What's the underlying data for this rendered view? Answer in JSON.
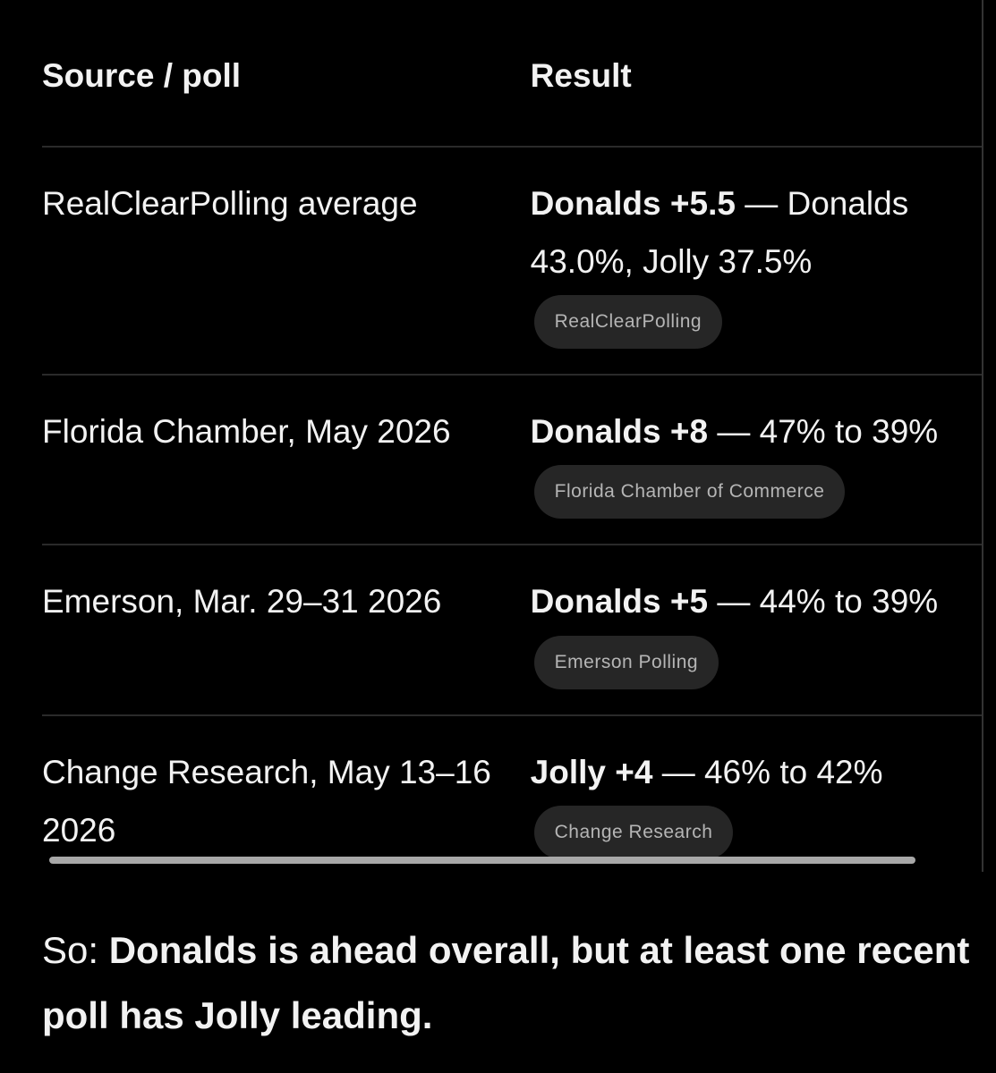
{
  "table": {
    "headers": [
      "Source / poll",
      "Result"
    ],
    "rows": [
      {
        "source": "RealClearPolling average",
        "lead": "Donalds +5.5",
        "detail": "— Donalds 43.0%, Jolly 37.5%",
        "citation": "RealClearPolling"
      },
      {
        "source": "Florida Chamber, May 2026",
        "lead": "Donalds +8",
        "detail": "— 47% to 39%",
        "citation": "Florida Chamber of Commerce"
      },
      {
        "source": "Emerson, Mar. 29–31 2026",
        "lead": "Donalds +5",
        "detail": "— 44% to 39%",
        "citation": "Emerson Polling"
      },
      {
        "source": "Change Research, May 13–16 2026",
        "lead": "Jolly +4",
        "detail": "— 46% to 42%",
        "citation": "Change Research"
      }
    ]
  },
  "summary": {
    "prefix": "So:",
    "emphasis": "Donalds is ahead overall, but at least one recent poll has Jolly leading."
  }
}
